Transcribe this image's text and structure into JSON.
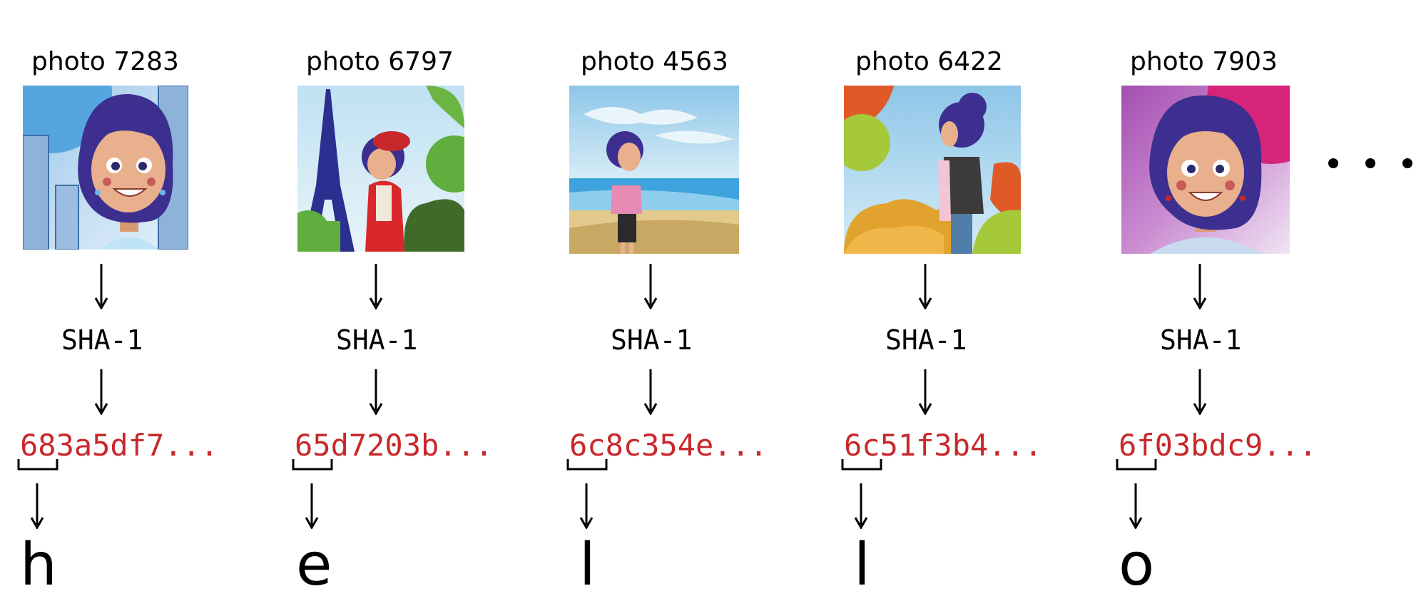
{
  "items": [
    {
      "title": "photo 7283",
      "function": "SHA-1",
      "hash": "683a5df7...",
      "letter": "h"
    },
    {
      "title": "photo 6797",
      "function": "SHA-1",
      "hash": "65d7203b...",
      "letter": "e"
    },
    {
      "title": "photo 4563",
      "function": "SHA-1",
      "hash": "6c8c354e...",
      "letter": "l"
    },
    {
      "title": "photo 6422",
      "function": "SHA-1",
      "hash": "6c51f3b4...",
      "letter": "l"
    },
    {
      "title": "photo 7903",
      "function": "SHA-1",
      "hash": "6f03bdc9...",
      "letter": "o"
    }
  ],
  "colors": {
    "hash": "#c8282b",
    "text": "#000000",
    "hair": "#3d2f8f",
    "skin": "#e8b08c"
  },
  "photo_icons": [
    "portrait-city-icon",
    "eiffel-tower-girl-icon",
    "beach-girl-icon",
    "autumn-girl-icon",
    "portrait-purple-icon"
  ]
}
